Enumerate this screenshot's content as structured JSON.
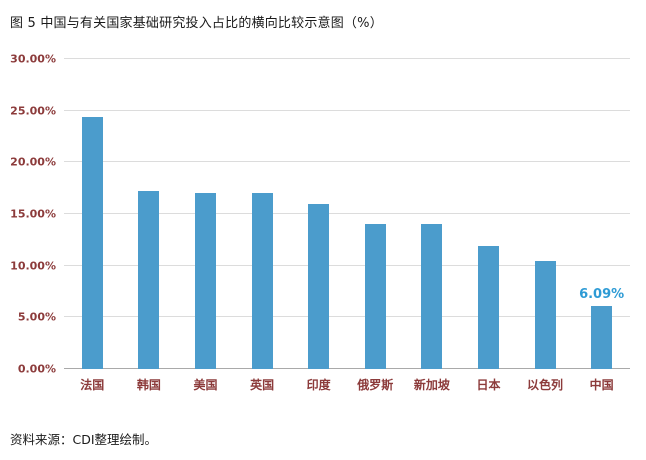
{
  "title": "图 5 中国与有关国家基础研究投入占比的横向比较示意图（%）",
  "source": "资料来源：CDI整理绘制。",
  "chart_data": {
    "type": "bar",
    "title": "中国与有关国家基础研究投入占比的横向比较示意图（%）",
    "categories": [
      "法国",
      "韩国",
      "美国",
      "英国",
      "印度",
      "俄罗斯",
      "新加坡",
      "日本",
      "以色列",
      "中国"
    ],
    "values": [
      24.4,
      17.2,
      17.0,
      17.0,
      16.0,
      14.0,
      14.0,
      11.9,
      10.5,
      6.09
    ],
    "point_labels": [
      "",
      "",
      "",
      "",
      "",
      "",
      "",
      "",
      "",
      "6.09%"
    ],
    "xlabel": "",
    "ylabel": "",
    "ylim": [
      0,
      30
    ],
    "yticks": [
      0,
      5,
      10,
      15,
      20,
      25,
      30
    ],
    "ytick_labels": [
      "0.00%",
      "5.00%",
      "10.00%",
      "15.00%",
      "20.00%",
      "25.00%",
      "30.00%"
    ],
    "grid": "horizontal",
    "legend": "none",
    "bar_color": "#4b9ccc",
    "data_label_color": "#2e9bd5",
    "tick_label_color": "#8c3b3b"
  }
}
